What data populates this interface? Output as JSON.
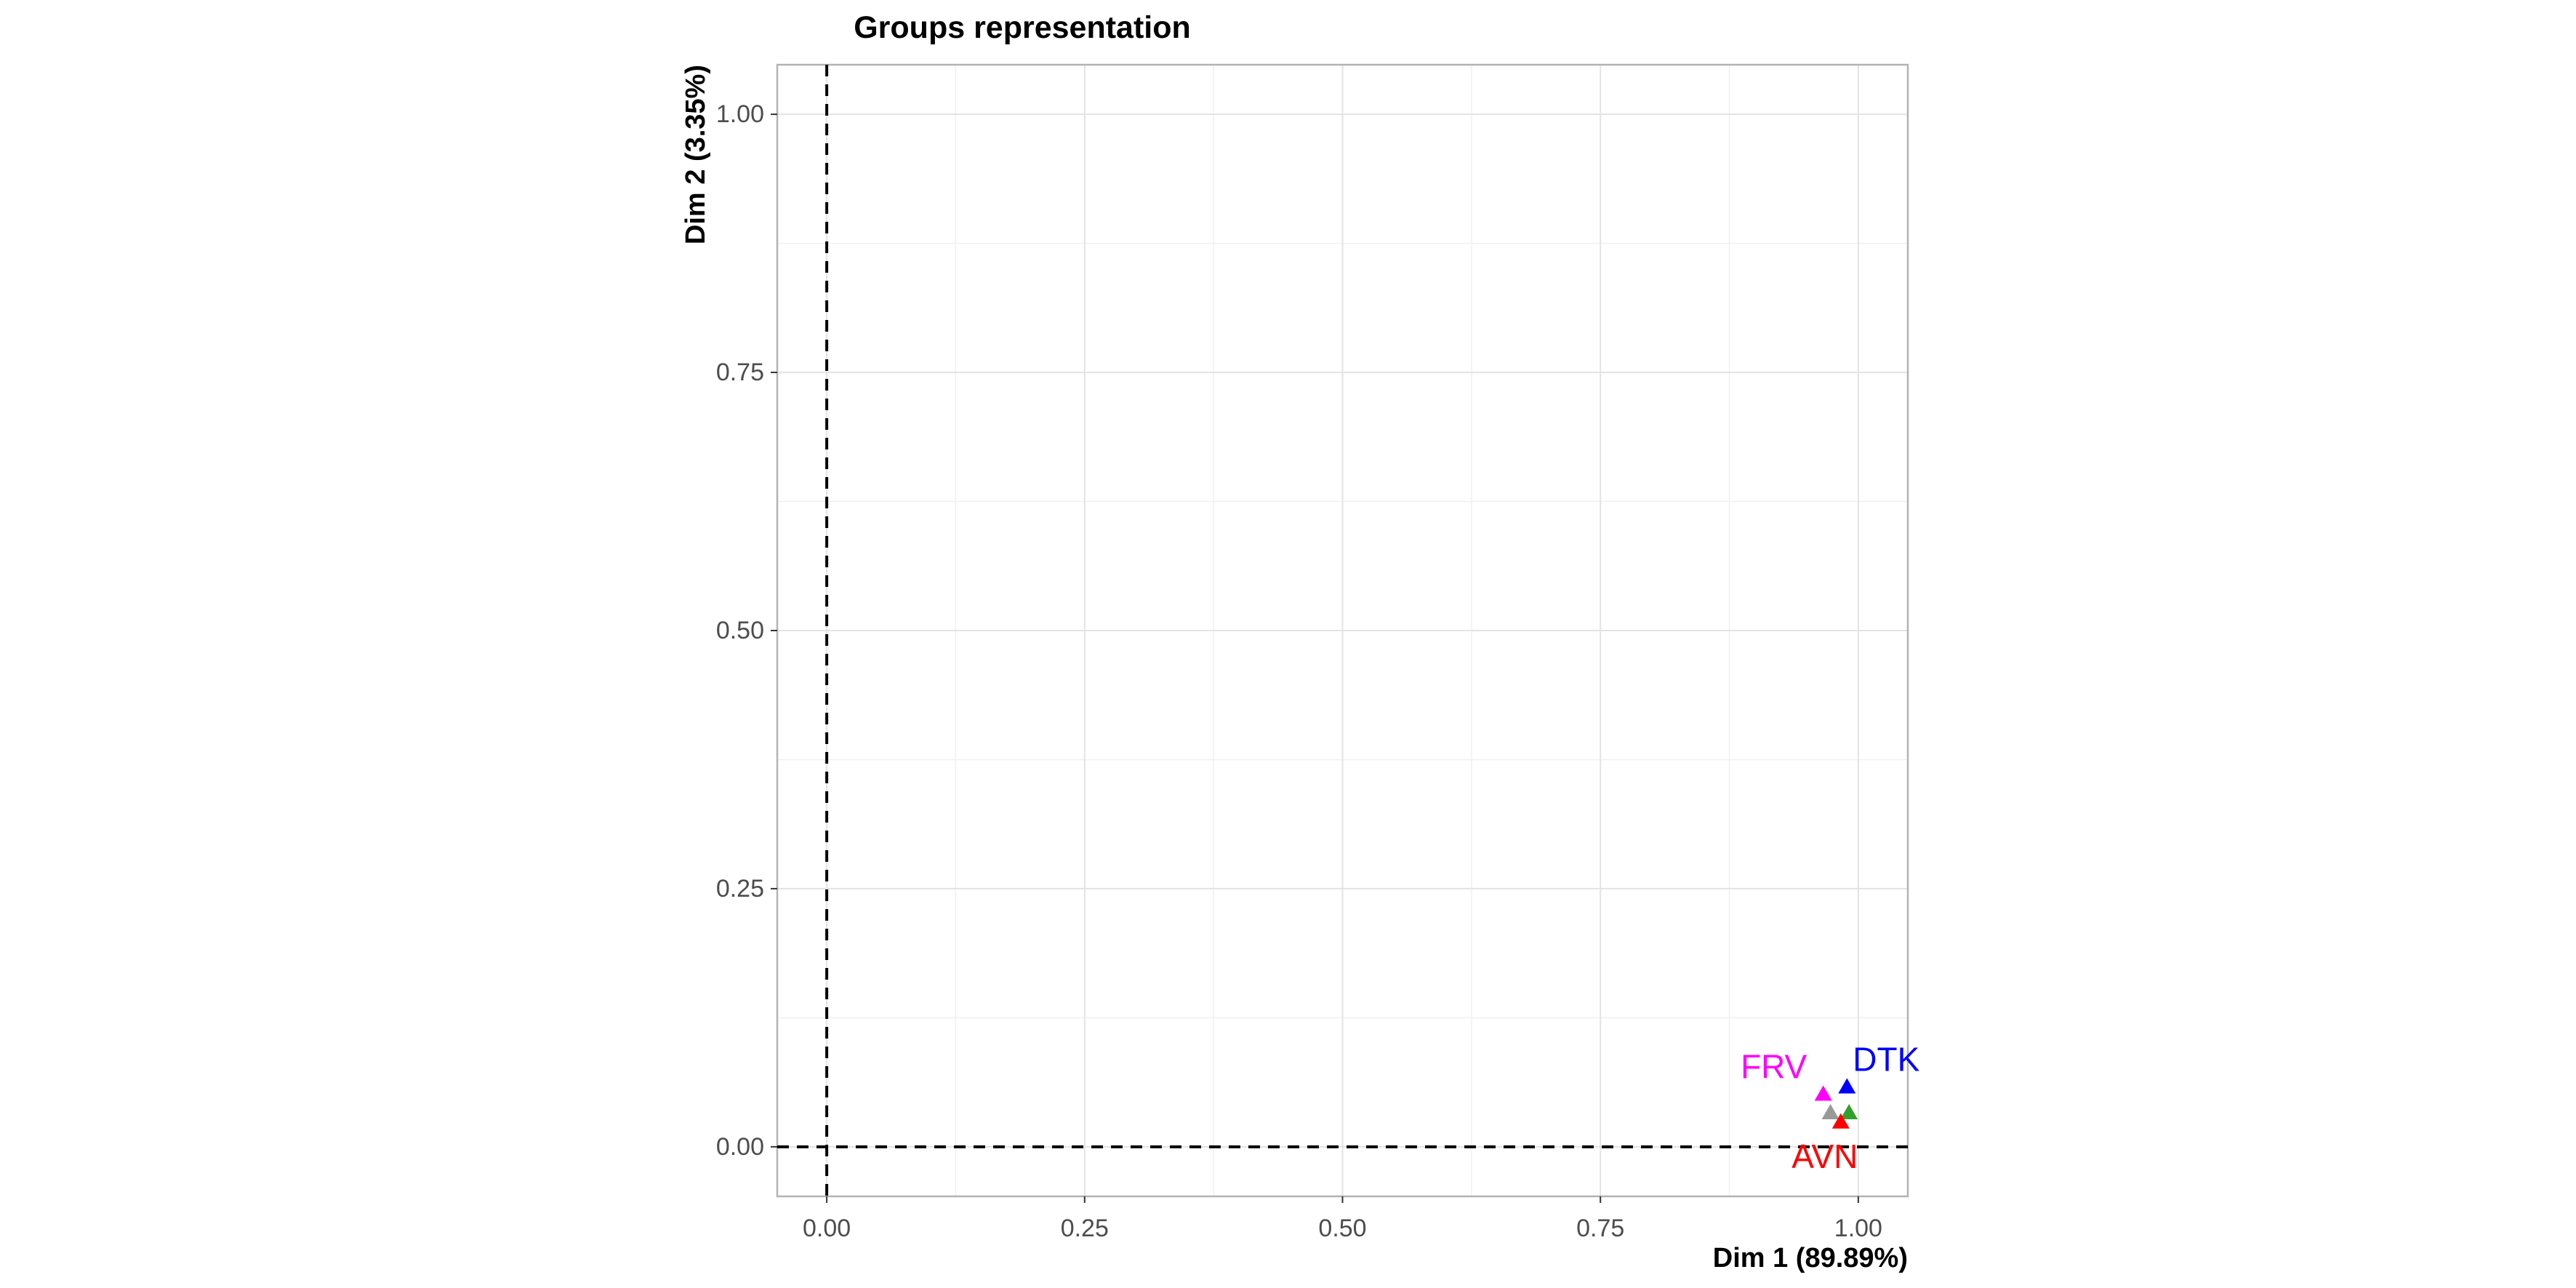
{
  "chart_data": {
    "type": "scatter",
    "title": "Groups representation",
    "xlabel": "Dim 1 (89.89%)",
    "ylabel": "Dim 2 (3.35%)",
    "xlim": [
      -0.048,
      1.048
    ],
    "ylim": [
      -0.048,
      1.048
    ],
    "x_ticks": [
      0.0,
      0.25,
      0.5,
      0.75,
      1.0
    ],
    "y_ticks": [
      0.0,
      0.25,
      0.5,
      0.75,
      1.0
    ],
    "x_tick_labels": [
      "0.00",
      "0.25",
      "0.50",
      "0.75",
      "1.00"
    ],
    "y_tick_labels": [
      "0.00",
      "0.25",
      "0.50",
      "0.75",
      "1.00"
    ],
    "grid": true,
    "reference_lines": {
      "x": 0,
      "y": 0,
      "style": "dashed"
    },
    "marker": "triangle",
    "points": [
      {
        "label": "FRV",
        "x": 0.966,
        "y": 0.051,
        "color": "#ff00ff"
      },
      {
        "label": "DTK",
        "x": 0.989,
        "y": 0.058,
        "color": "#0000ff"
      },
      {
        "label": "",
        "x": 0.973,
        "y": 0.033,
        "color": "#999999"
      },
      {
        "label": "",
        "x": 0.991,
        "y": 0.033,
        "color": "#33a02c"
      },
      {
        "label": "AVN",
        "x": 0.983,
        "y": 0.024,
        "color": "#ff0000"
      }
    ]
  }
}
